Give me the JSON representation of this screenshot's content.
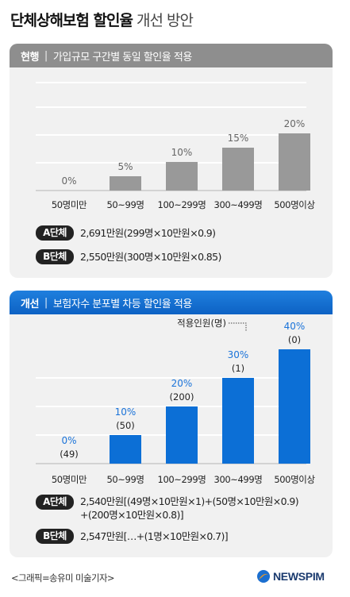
{
  "title": {
    "bold": "단체상해보험 할인율",
    "light": "개선 방안"
  },
  "panels": [
    {
      "tag": "현행",
      "subtitle": "가입규모 구간별 동일 할인율 적용",
      "notes": [
        {
          "badge": "A단체",
          "lines": [
            "2,691만원(299명×10만원×0.9)"
          ]
        },
        {
          "badge": "B단체",
          "lines": [
            "2,550만원(300명×10만원×0.85)"
          ]
        }
      ]
    },
    {
      "tag": "개선",
      "subtitle": "보험자수 분포별 차등 할인율 적용",
      "annotation": "적용인원(명)",
      "notes": [
        {
          "badge": "A단체",
          "lines": [
            "2,540만원[(49명×10만원×1)+(50명×10만원×0.9)",
            "+(200명×10만원×0.8)]"
          ]
        },
        {
          "badge": "B단체",
          "lines": [
            "2,547만원[…+(1명×10만원×0.7)]"
          ]
        }
      ]
    }
  ],
  "chart_data": [
    {
      "type": "bar",
      "title": "현행",
      "categories": [
        "50명미만",
        "50~99명",
        "100~299명",
        "300~499명",
        "500명이상"
      ],
      "values": [
        0,
        5,
        10,
        15,
        20
      ],
      "labels": [
        "0%",
        "5%",
        "10%",
        "15%",
        "20%"
      ],
      "ylim": [
        0,
        40
      ],
      "grid": true,
      "bar_color": "#999999",
      "label_color": "#666666"
    },
    {
      "type": "bar",
      "title": "개선",
      "categories": [
        "50명미만",
        "50~99명",
        "100~299명",
        "300~499명",
        "500명이상"
      ],
      "values": [
        0,
        10,
        20,
        30,
        40
      ],
      "labels": [
        "0%",
        "10%",
        "20%",
        "30%",
        "40%"
      ],
      "counts": [
        "(49)",
        "(50)",
        "(200)",
        "(1)",
        "(0)"
      ],
      "ylim": [
        0,
        40
      ],
      "grid": true,
      "bar_color": "#0c6fd6",
      "label_color": "#1a73d9"
    }
  ],
  "footer": {
    "credit": "<그래픽=송유미 미술기자>",
    "logo": "NEWSPIM"
  },
  "colors": {
    "logo_blue": "#1b6fd0",
    "logo_orange": "#f39a1e"
  }
}
